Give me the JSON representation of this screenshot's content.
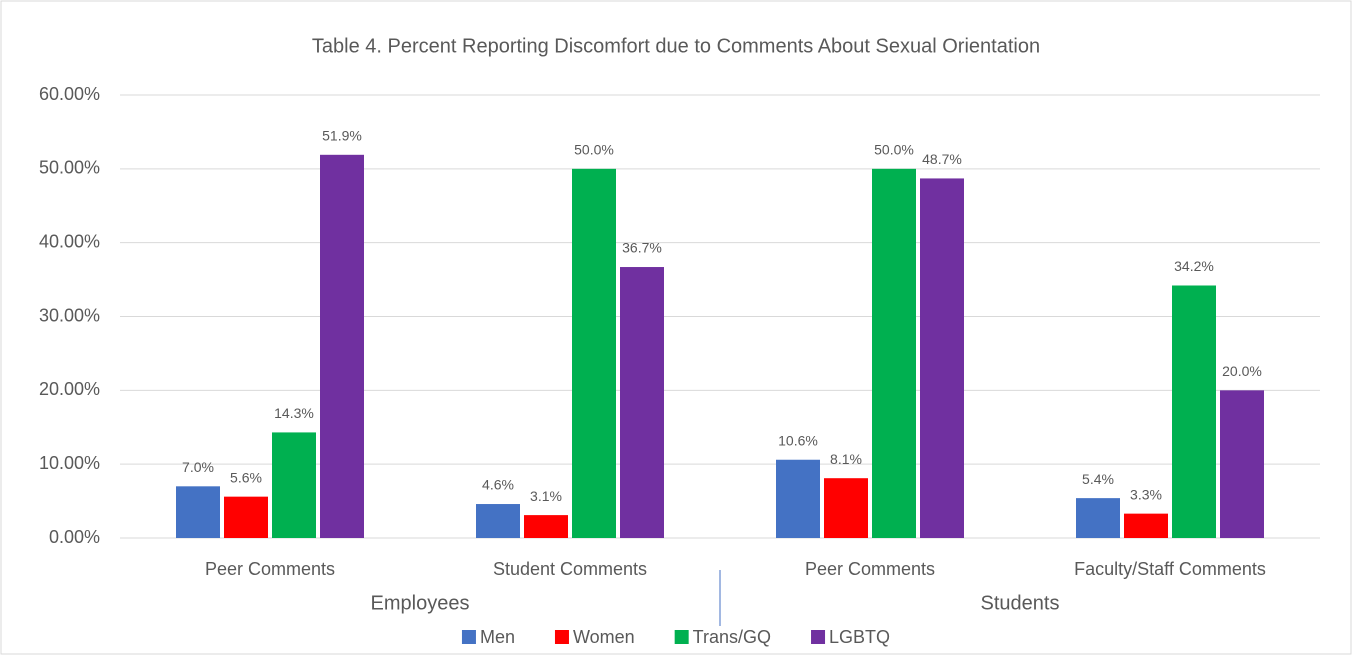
{
  "chart_data": {
    "type": "bar",
    "title": "Table 4. Percent Reporting Discomfort due to Comments About Sexual Orientation",
    "category_groups": [
      {
        "name": "Employees",
        "categories": [
          "Peer Comments",
          "Student Comments"
        ]
      },
      {
        "name": "Students",
        "categories": [
          "Peer Comments",
          "Faculty/Staff Comments"
        ]
      }
    ],
    "series": [
      {
        "name": "Men",
        "color": "#4472c4",
        "values": [
          7.0,
          4.6,
          10.6,
          5.4
        ],
        "value_labels": [
          "7.0%",
          "4.6%",
          "10.6%",
          "5.4%"
        ]
      },
      {
        "name": "Women",
        "color": "#ff0000",
        "values": [
          5.6,
          3.1,
          8.1,
          3.3
        ],
        "value_labels": [
          "5.6%",
          "3.1%",
          "8.1%",
          "3.3%"
        ]
      },
      {
        "name": "Trans/GQ",
        "color": "#00b050",
        "values": [
          14.3,
          50.0,
          50.0,
          34.2
        ],
        "value_labels": [
          "14.3%",
          "50.0%",
          "50.0%",
          "34.2%"
        ]
      },
      {
        "name": "LGBTQ",
        "color": "#7030a0",
        "values": [
          51.9,
          36.7,
          48.7,
          20.0
        ],
        "value_labels": [
          "51.9%",
          "36.7%",
          "48.7%",
          "20.0%"
        ]
      }
    ],
    "ylim": [
      0,
      60
    ],
    "yticks": [
      {
        "value": 0,
        "label": "0.00%"
      },
      {
        "value": 10,
        "label": "10.00%"
      },
      {
        "value": 20,
        "label": "20.00%"
      },
      {
        "value": 30,
        "label": "30.00%"
      },
      {
        "value": 40,
        "label": "40.00%"
      },
      {
        "value": 50,
        "label": "50.00%"
      },
      {
        "value": 60,
        "label": "60.00%"
      }
    ],
    "grid": true,
    "legend": "bottom"
  }
}
